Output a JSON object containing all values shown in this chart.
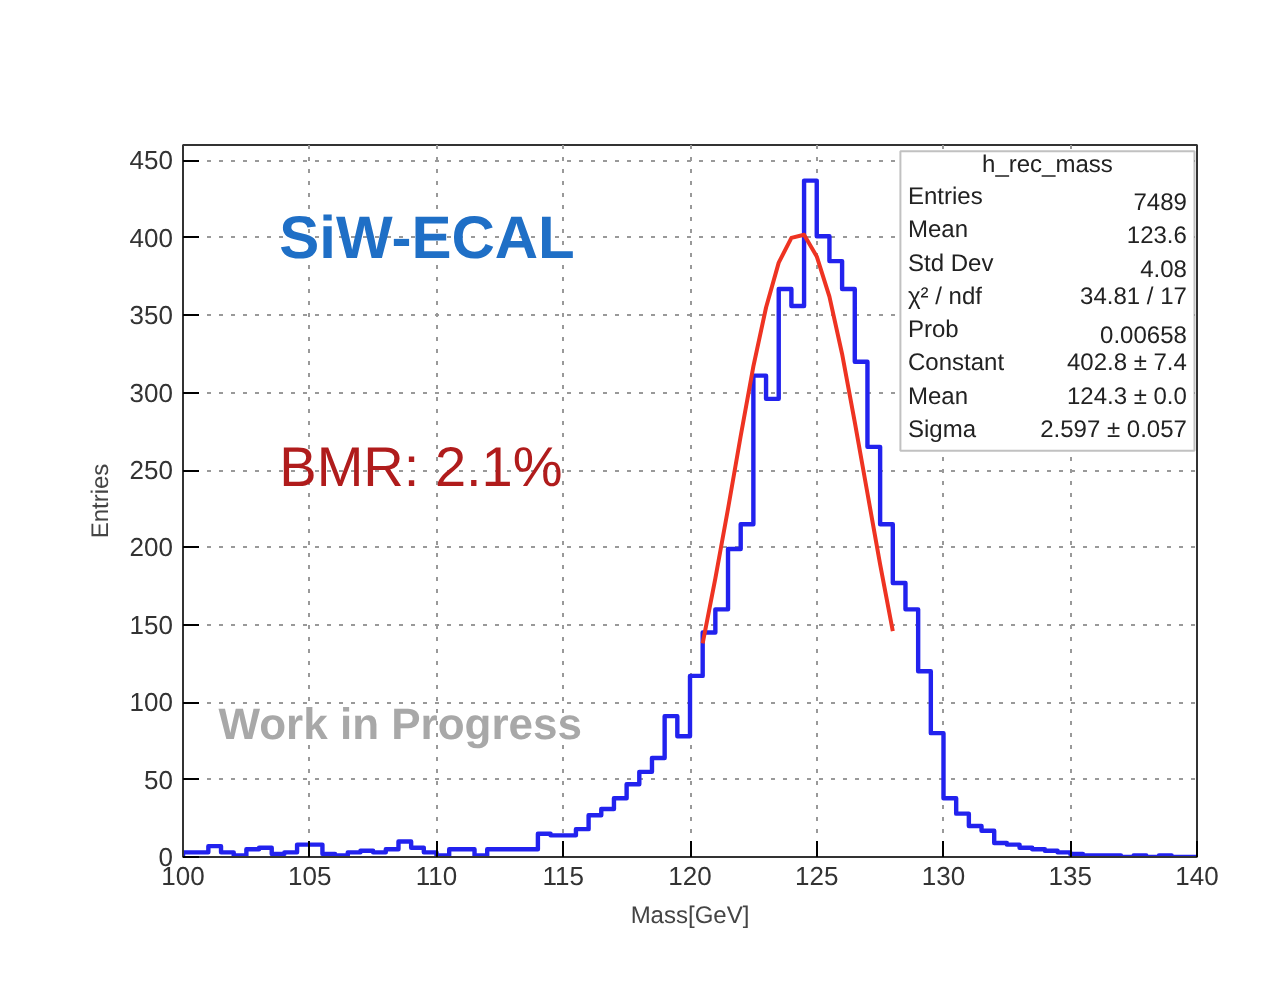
{
  "chart_data": {
    "type": "histogram",
    "xlabel": "Mass[GeV]",
    "ylabel": "Entries",
    "bins": [
      100,
      100.5,
      101,
      101.5,
      102,
      102.5,
      103,
      103.5,
      104,
      104.5,
      105,
      105.5,
      106,
      106.5,
      107,
      107.5,
      108,
      108.5,
      109,
      109.5,
      110,
      110.5,
      111,
      111.5,
      112,
      112.5,
      113,
      113.5,
      114,
      114.5,
      115,
      115.5,
      116,
      116.5,
      117,
      117.5,
      118,
      118.5,
      119,
      119.5,
      120,
      120.5,
      121,
      121.5,
      122,
      122.5,
      123,
      123.5,
      124,
      124.5,
      125,
      125.5,
      126,
      126.5,
      127,
      127.5,
      128,
      128.5,
      129,
      129.5,
      130,
      130.5,
      131,
      131.5,
      132,
      132.5,
      133,
      133.5,
      134,
      134.5,
      135,
      135.5,
      136,
      136.5,
      137,
      137.5,
      138,
      138.5,
      139,
      139.5,
      140
    ],
    "series": [
      {
        "color": "#2222ee",
        "values": [
          3,
          3,
          7,
          3,
          1,
          5,
          6,
          2,
          3,
          8,
          8,
          2,
          1,
          3,
          4,
          3,
          5,
          10,
          6,
          3,
          1,
          5,
          5,
          1,
          5,
          5,
          5,
          5,
          15,
          14,
          14,
          18,
          27,
          31,
          38,
          47,
          55,
          64,
          91,
          78,
          117,
          145,
          160,
          199,
          215,
          311,
          296,
          367,
          356,
          437,
          401,
          385,
          367,
          320,
          265,
          215,
          177,
          160,
          120,
          80,
          38,
          28,
          20,
          17,
          9,
          8,
          6,
          5,
          4,
          3,
          2,
          1,
          1,
          1,
          0,
          1,
          0,
          1,
          0,
          0
        ]
      },
      {
        "type": "line",
        "color": "#ee3322",
        "x": [
          120.5,
          121,
          121.5,
          122,
          122.5,
          123,
          123.5,
          124,
          124.5,
          125,
          125.5,
          126,
          126.5,
          127,
          127.5,
          128
        ],
        "values": [
          138,
          180,
          225,
          272,
          317,
          355,
          384,
          400,
          402,
          388,
          362,
          325,
          281,
          235,
          189,
          146
        ]
      }
    ],
    "xlim": [
      100,
      140
    ],
    "ylim": [
      0,
      460
    ],
    "xticks": [
      100,
      105,
      110,
      115,
      120,
      125,
      130,
      135,
      140
    ],
    "yticks": [
      0,
      50,
      100,
      150,
      200,
      250,
      300,
      350,
      400,
      450
    ],
    "grid": true,
    "annotations": [
      "SiW-ECAL",
      "BMR: 2.1%",
      "Work in Progress",
      "h_rec_mass",
      "Entries",
      "7489",
      "Mean",
      "123.6",
      "Std Dev",
      "4.08",
      "χ² / ndf",
      "34.81 / 17",
      "Prob",
      "0.00658",
      "Constant",
      "402.8 ± 7.4",
      "Mean",
      "124.3 ± 0.0",
      "Sigma",
      "2.597 ± 0.057"
    ]
  }
}
